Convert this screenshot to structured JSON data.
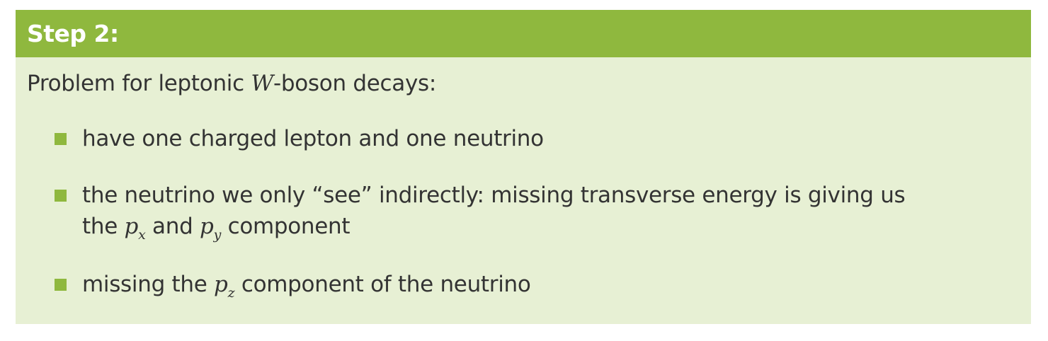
{
  "block": {
    "title": "Step 2:",
    "intro": {
      "before": "Problem for leptonic ",
      "math": "W",
      "after": "-boson decays:"
    },
    "items": [
      {
        "text": "have one charged lepton and one neutrino"
      },
      {
        "line1": "the neutrino we only “see” indirectly: missing transverse energy is giving us",
        "line2_before": "the ",
        "px_base": "p",
        "px_sub": "x",
        "mid": " and ",
        "py_base": "p",
        "py_sub": "y",
        "after": " component"
      },
      {
        "before": "missing the ",
        "pz_base": "p",
        "pz_sub": "z",
        "after": " component of the neutrino"
      }
    ],
    "colors": {
      "header": "#8fb83e",
      "body": "#e7f0d4",
      "text": "#333333",
      "bullet": "#8fb83e"
    }
  }
}
